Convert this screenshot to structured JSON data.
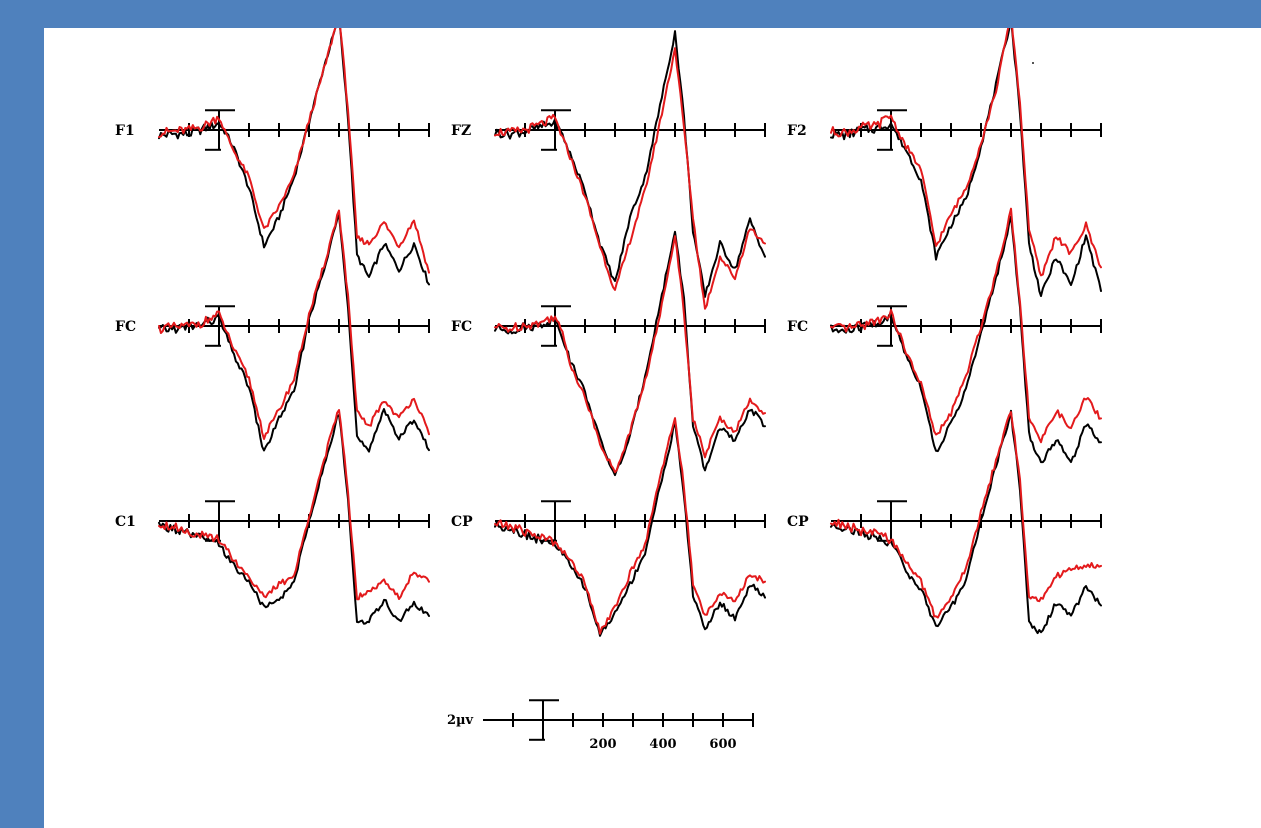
{
  "colors": {
    "background": "#4f81bd",
    "panel": "#ffffff",
    "condition_a": "#000000",
    "condition_b": "#e31a1c"
  },
  "chart_data": {
    "type": "line",
    "title": "",
    "layout": "3x3 grid of electrode panels",
    "x_unit": "ms",
    "x_range": [
      -200,
      700
    ],
    "x_tick_step": 100,
    "scale_bar": {
      "amplitude_label": "2µv",
      "time_tick_labels": [
        "200",
        "400",
        "600"
      ],
      "time_tick_values": [
        200,
        400,
        600
      ]
    },
    "polarity": "positive up",
    "series": [
      {
        "color": "#000000"
      },
      {
        "color": "#e31a1c"
      }
    ],
    "x": [
      -200,
      -150,
      -100,
      -50,
      0,
      25,
      50,
      100,
      150,
      200,
      250,
      300,
      350,
      400,
      430,
      460,
      500,
      550,
      600,
      650,
      700
    ],
    "panels": [
      {
        "label": "F1",
        "black": [
          -0.4,
          -0.3,
          -0.3,
          0.1,
          0.5,
          -0.3,
          -1.4,
          -4.4,
          -8.8,
          -6.6,
          -3.6,
          0.6,
          4.8,
          8.6,
          1.0,
          -9.5,
          -11.2,
          -8.6,
          -10.6,
          -8.6,
          -11.7
        ],
        "red": [
          -0.2,
          -0.1,
          0.0,
          0.3,
          1.0,
          -0.4,
          -1.6,
          -3.6,
          -7.6,
          -5.8,
          -3.5,
          0.7,
          4.6,
          8.8,
          1.6,
          -8.2,
          -8.6,
          -7.0,
          -8.8,
          -6.8,
          -10.8
        ]
      },
      {
        "label": "FZ",
        "black": [
          -0.2,
          -0.3,
          -0.1,
          0.2,
          0.6,
          -0.4,
          -1.8,
          -4.6,
          -8.6,
          -11.6,
          -6.6,
          -3.6,
          1.8,
          7.4,
          1.0,
          -7.6,
          -12.6,
          -8.6,
          -10.6,
          -6.8,
          -9.6
        ],
        "red": [
          -0.1,
          -0.2,
          0.0,
          0.4,
          0.9,
          -0.6,
          -2.0,
          -5.0,
          -8.8,
          -12.2,
          -8.4,
          -4.6,
          0.6,
          6.2,
          0.2,
          -6.6,
          -13.6,
          -9.6,
          -11.2,
          -7.4,
          -8.6
        ]
      },
      {
        "label": "F2",
        "black": [
          -0.3,
          -0.4,
          0.0,
          0.1,
          0.5,
          -0.6,
          -1.5,
          -3.8,
          -9.6,
          -7.2,
          -5.2,
          -1.2,
          3.4,
          8.4,
          1.4,
          -8.6,
          -12.6,
          -9.6,
          -11.8,
          -8.0,
          -12.2
        ],
        "red": [
          -0.1,
          -0.2,
          0.2,
          0.3,
          1.1,
          -0.2,
          -1.2,
          -3.0,
          -8.8,
          -6.4,
          -4.4,
          -1.0,
          3.0,
          8.8,
          2.0,
          -7.4,
          -11.2,
          -8.0,
          -9.4,
          -7.2,
          -10.4
        ]
      },
      {
        "label": "FC",
        "black": [
          -0.3,
          -0.2,
          -0.1,
          0.2,
          0.6,
          -0.8,
          -2.2,
          -4.6,
          -9.6,
          -7.0,
          -5.0,
          0.6,
          4.2,
          8.6,
          1.6,
          -8.4,
          -9.6,
          -6.2,
          -8.6,
          -7.0,
          -9.4
        ],
        "red": [
          -0.2,
          -0.1,
          0.0,
          0.3,
          0.9,
          -0.4,
          -1.8,
          -4.0,
          -8.4,
          -6.4,
          -4.0,
          0.8,
          4.6,
          8.8,
          2.2,
          -6.6,
          -7.6,
          -5.6,
          -7.0,
          -5.4,
          -8.2
        ]
      },
      {
        "label": "FC",
        "black": [
          -0.2,
          -0.3,
          -0.1,
          0.1,
          0.5,
          -0.8,
          -2.6,
          -5.0,
          -8.6,
          -11.4,
          -8.4,
          -3.8,
          1.6,
          7.2,
          2.0,
          -7.6,
          -11.0,
          -7.6,
          -8.8,
          -6.2,
          -7.6
        ],
        "red": [
          -0.1,
          -0.2,
          0.1,
          0.2,
          0.8,
          -0.6,
          -2.8,
          -5.4,
          -8.8,
          -11.2,
          -8.0,
          -4.2,
          0.8,
          7.0,
          1.0,
          -7.0,
          -9.8,
          -7.0,
          -8.0,
          -5.6,
          -6.6
        ]
      },
      {
        "label": "FC",
        "black": [
          -0.3,
          -0.4,
          -0.1,
          0.2,
          0.6,
          -0.6,
          -2.2,
          -4.6,
          -9.6,
          -7.4,
          -4.8,
          -0.6,
          3.6,
          8.2,
          1.4,
          -8.2,
          -10.4,
          -8.6,
          -10.4,
          -7.4,
          -8.8
        ],
        "red": [
          -0.2,
          -0.2,
          0.0,
          0.4,
          1.0,
          -0.4,
          -2.0,
          -4.4,
          -8.4,
          -6.6,
          -3.8,
          0.0,
          4.0,
          8.8,
          1.8,
          -6.8,
          -8.8,
          -6.4,
          -7.8,
          -5.4,
          -7.0
        ]
      },
      {
        "label": "C1",
        "black": [
          -0.4,
          -0.6,
          -1.0,
          -1.4,
          -1.8,
          -2.6,
          -3.4,
          -4.6,
          -6.6,
          -6.0,
          -4.6,
          0.0,
          4.2,
          8.2,
          1.6,
          -7.6,
          -7.6,
          -6.0,
          -7.6,
          -6.2,
          -7.2
        ],
        "red": [
          -0.2,
          -0.4,
          -0.8,
          -1.2,
          -1.4,
          -2.0,
          -3.0,
          -4.2,
          -5.8,
          -4.8,
          -4.2,
          0.4,
          4.6,
          8.6,
          2.2,
          -5.8,
          -5.2,
          -4.6,
          -5.8,
          -3.8,
          -4.6
        ]
      },
      {
        "label": "CP",
        "black": [
          -0.3,
          -0.5,
          -1.0,
          -1.4,
          -1.8,
          -2.4,
          -3.4,
          -5.0,
          -8.6,
          -7.0,
          -4.8,
          -2.4,
          2.6,
          7.4,
          2.0,
          -5.6,
          -8.2,
          -6.2,
          -7.4,
          -4.8,
          -5.8
        ],
        "red": [
          -0.2,
          -0.4,
          -0.8,
          -1.2,
          -1.6,
          -2.2,
          -3.0,
          -4.6,
          -8.4,
          -6.6,
          -4.0,
          -1.8,
          3.4,
          7.8,
          2.6,
          -4.8,
          -7.2,
          -5.4,
          -6.2,
          -4.0,
          -4.6
        ]
      },
      {
        "label": "CP",
        "black": [
          -0.3,
          -0.5,
          -1.0,
          -1.2,
          -1.6,
          -2.6,
          -3.8,
          -5.2,
          -8.0,
          -6.6,
          -4.4,
          0.0,
          4.2,
          8.2,
          2.4,
          -7.6,
          -8.6,
          -6.2,
          -7.2,
          -5.0,
          -6.4
        ],
        "red": [
          -0.1,
          -0.3,
          -0.8,
          -1.0,
          -1.4,
          -2.2,
          -3.2,
          -4.6,
          -7.4,
          -5.8,
          -3.6,
          0.6,
          4.6,
          8.4,
          3.0,
          -5.6,
          -6.0,
          -4.2,
          -3.6,
          -3.4,
          -3.4
        ]
      }
    ]
  }
}
